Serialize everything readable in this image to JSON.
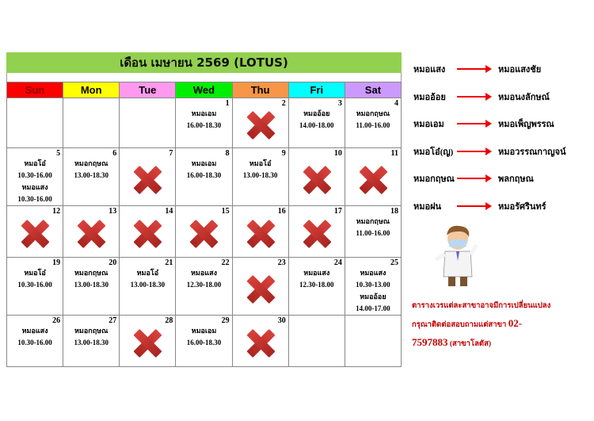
{
  "title": "เดือน เมษายน 2569 (LOTUS)",
  "weekdays": [
    {
      "label": "Sun",
      "color": "#ff0000"
    },
    {
      "label": "Mon",
      "color": "#ffff00"
    },
    {
      "label": "Tue",
      "color": "#ff99ee"
    },
    {
      "label": "Wed",
      "color": "#00ee00"
    },
    {
      "label": "Thu",
      "color": "#f79646"
    },
    {
      "label": "Fri",
      "color": "#00ffff"
    },
    {
      "label": "Sat",
      "color": "#cc99ff"
    }
  ],
  "weeks": [
    [
      {},
      {},
      {},
      {
        "day": "1",
        "entries": [
          "หมอเอม",
          "16.00-18.30"
        ]
      },
      {
        "day": "2",
        "closed": true
      },
      {
        "day": "3",
        "entries": [
          "หมออ้อย",
          "14.00-18.00"
        ]
      },
      {
        "day": "4",
        "entries": [
          "หมอกฤษณ",
          "11.00-16.00"
        ]
      }
    ],
    [
      {
        "day": "5",
        "entries": [
          "หมอโอ๋",
          "10.30-16.00",
          "หมอแสง",
          "10.30-16.00"
        ]
      },
      {
        "day": "6",
        "entries": [
          "หมอกฤษณ",
          "13.00-18.30"
        ]
      },
      {
        "day": "7",
        "closed": true
      },
      {
        "day": "8",
        "entries": [
          "หมอเอม",
          "16.00-18.30"
        ]
      },
      {
        "day": "9",
        "entries": [
          "หมอโอ๋",
          "13.00-18.30"
        ]
      },
      {
        "day": "10",
        "closed": true
      },
      {
        "day": "11",
        "closed": true
      }
    ],
    [
      {
        "day": "12",
        "closed": true
      },
      {
        "day": "13",
        "closed": true
      },
      {
        "day": "14",
        "closed": true
      },
      {
        "day": "15",
        "closed": true
      },
      {
        "day": "16",
        "closed": true
      },
      {
        "day": "17",
        "closed": true
      },
      {
        "day": "18",
        "entries": [
          "หมอกฤษณ",
          "11.00-16.00"
        ]
      }
    ],
    [
      {
        "day": "19",
        "entries": [
          "หมอโอ๋",
          "10.30-16.00"
        ]
      },
      {
        "day": "20",
        "entries": [
          "หมอกฤษณ",
          "13.00-18.30"
        ]
      },
      {
        "day": "21",
        "entries": [
          "หมอโอ๋",
          "13.00-18.30"
        ]
      },
      {
        "day": "22",
        "entries": [
          "หมอแสง",
          "12.30-18.00"
        ]
      },
      {
        "day": "23",
        "closed": true
      },
      {
        "day": "24",
        "entries": [
          "หมอแสง",
          "12.30-18.00"
        ]
      },
      {
        "day": "25",
        "entries": [
          "หมอแสง",
          "10.30-13.00",
          "หมออ้อย",
          "14.00-17.00"
        ]
      }
    ],
    [
      {
        "day": "26",
        "entries": [
          "หมอแสง",
          "10.30-16.00"
        ]
      },
      {
        "day": "27",
        "entries": [
          "หมอกฤษณ",
          "13.00-18.30"
        ]
      },
      {
        "day": "28",
        "closed": true
      },
      {
        "day": "29",
        "entries": [
          "หมอเอม",
          "16.00-18.30"
        ]
      },
      {
        "day": "30",
        "closed": true
      },
      {},
      {}
    ]
  ],
  "legend": [
    {
      "short": "หมอแสง",
      "full": "หมอแสงชัย"
    },
    {
      "short": "หมออ้อย",
      "full": "หมอนงลักษณ์"
    },
    {
      "short": "หมอเอม",
      "full": "หมอเพ็ญพรรณ"
    },
    {
      "short": "หมอโอ๋(ญ)",
      "full": "หมอวรรณกาญจน์"
    },
    {
      "short": "หมอกฤษณ",
      "full": "พลกฤษณ"
    },
    {
      "short": "หมอฝน",
      "full": "หมอรัศรินทร์"
    }
  ],
  "note": {
    "text": "ตารางเวรแต่ละสาขาอาจมีการเปลี่ยนแปลง กรุณาติดต่อสอบถามแต่สาขา",
    "phone": "02-7597883",
    "branch": "(สาขาโลตัส)"
  },
  "colors": {
    "title_bg": "#92d050",
    "note": "#c00000",
    "closed_mark": "#c0392b"
  }
}
